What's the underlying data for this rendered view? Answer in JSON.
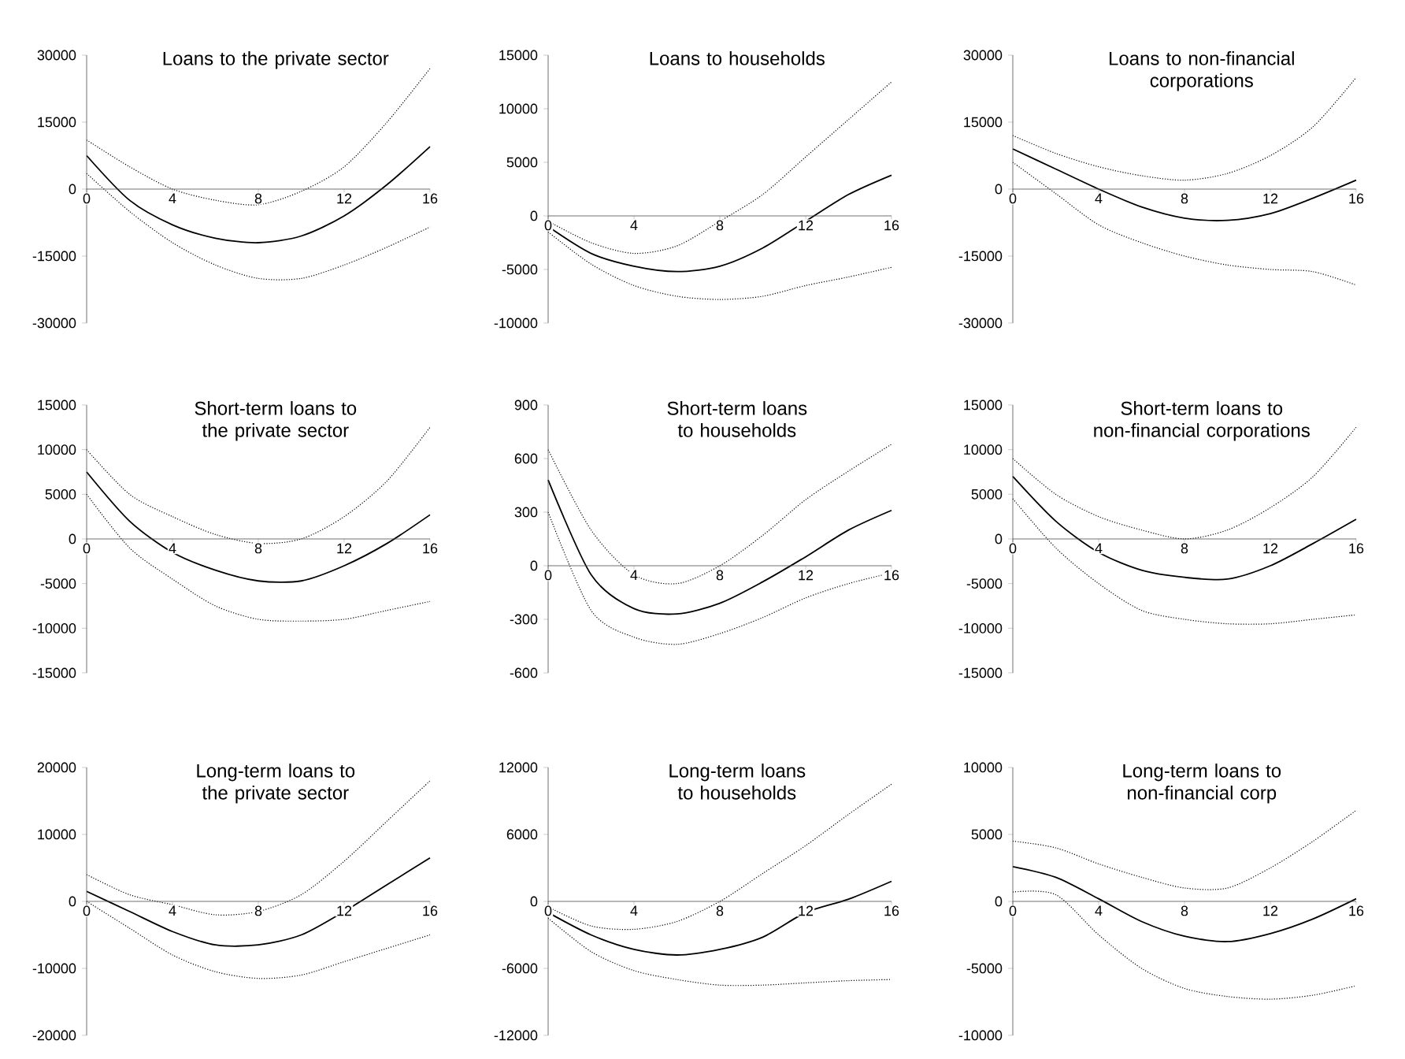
{
  "chart_data": [
    {
      "type": "line",
      "title": "Loans to the private sector",
      "x": [
        0,
        2,
        4,
        6,
        8,
        10,
        12,
        14,
        16
      ],
      "xlim": [
        0,
        16
      ],
      "xticks": [
        0,
        4,
        8,
        12,
        16
      ],
      "ylim": [
        -30000,
        30000
      ],
      "yticks": [
        -30000,
        -15000,
        0,
        15000,
        30000
      ],
      "series": [
        {
          "color": "#000000",
          "line_style": "solid",
          "values": [
            7500,
            -2500,
            -8000,
            -11000,
            -12000,
            -10500,
            -6000,
            1000,
            9500
          ]
        },
        {
          "color": "#000000",
          "line_style": "dotted",
          "values": [
            11000,
            5000,
            0,
            -2500,
            -3500,
            -500,
            5000,
            15000,
            27000
          ]
        },
        {
          "color": "#000000",
          "line_style": "dotted",
          "values": [
            3500,
            -5000,
            -12000,
            -17000,
            -20000,
            -20000,
            -17000,
            -13000,
            -8500
          ]
        }
      ]
    },
    {
      "type": "line",
      "title": "Loans to households",
      "x": [
        0,
        2,
        4,
        6,
        8,
        10,
        12,
        14,
        16
      ],
      "xlim": [
        0,
        16
      ],
      "xticks": [
        0,
        4,
        8,
        12,
        16
      ],
      "ylim": [
        -10000,
        15000
      ],
      "yticks": [
        -10000,
        -5000,
        0,
        5000,
        10000,
        15000
      ],
      "series": [
        {
          "color": "#000000",
          "line_style": "solid",
          "values": [
            -1000,
            -3500,
            -4700,
            -5200,
            -4700,
            -3000,
            -500,
            2000,
            3800
          ]
        },
        {
          "color": "#000000",
          "line_style": "dotted",
          "values": [
            -500,
            -2500,
            -3500,
            -2800,
            -500,
            2000,
            5500,
            9000,
            12500
          ]
        },
        {
          "color": "#000000",
          "line_style": "dotted",
          "values": [
            -1500,
            -4500,
            -6500,
            -7500,
            -7800,
            -7500,
            -6500,
            -5700,
            -4800
          ]
        }
      ]
    },
    {
      "type": "line",
      "title": "Loans to non-financial corporations",
      "x": [
        0,
        2,
        4,
        6,
        8,
        10,
        12,
        14,
        16
      ],
      "xlim": [
        0,
        16
      ],
      "xticks": [
        0,
        4,
        8,
        12,
        16
      ],
      "ylim": [
        -30000,
        30000
      ],
      "yticks": [
        -30000,
        -15000,
        0,
        15000,
        30000
      ],
      "series": [
        {
          "color": "#000000",
          "line_style": "solid",
          "values": [
            9000,
            4500,
            0,
            -4000,
            -6500,
            -7000,
            -5500,
            -2000,
            2000
          ]
        },
        {
          "color": "#000000",
          "line_style": "dotted",
          "values": [
            12000,
            8000,
            5000,
            3000,
            2000,
            3500,
            7500,
            14000,
            25000
          ]
        },
        {
          "color": "#000000",
          "line_style": "dotted",
          "values": [
            6000,
            -1000,
            -8000,
            -12000,
            -15000,
            -17000,
            -18000,
            -18500,
            -21500
          ]
        }
      ]
    },
    {
      "type": "line",
      "title": "Short-term loans to the private sector",
      "x": [
        0,
        2,
        4,
        6,
        8,
        10,
        12,
        14,
        16
      ],
      "xlim": [
        0,
        16
      ],
      "xticks": [
        0,
        4,
        8,
        12,
        16
      ],
      "ylim": [
        -15000,
        15000
      ],
      "yticks": [
        -15000,
        -10000,
        -5000,
        0,
        5000,
        10000,
        15000
      ],
      "series": [
        {
          "color": "#000000",
          "line_style": "solid",
          "values": [
            7500,
            2000,
            -1500,
            -3500,
            -4700,
            -4700,
            -3000,
            -500,
            2700
          ]
        },
        {
          "color": "#000000",
          "line_style": "dotted",
          "values": [
            10000,
            5000,
            2500,
            500,
            -500,
            0,
            2500,
            6500,
            12500
          ]
        },
        {
          "color": "#000000",
          "line_style": "dotted",
          "values": [
            5000,
            -1000,
            -4500,
            -7500,
            -9000,
            -9200,
            -9000,
            -8000,
            -7000
          ]
        }
      ]
    },
    {
      "type": "line",
      "title": "Short-term loans to households",
      "x": [
        0,
        2,
        4,
        6,
        8,
        10,
        12,
        14,
        16
      ],
      "xlim": [
        0,
        16
      ],
      "xticks": [
        0,
        4,
        8,
        12,
        16
      ],
      "ylim": [
        -600,
        900
      ],
      "yticks": [
        -600,
        -300,
        0,
        300,
        600,
        900
      ],
      "series": [
        {
          "color": "#000000",
          "line_style": "solid",
          "values": [
            480,
            -50,
            -240,
            -270,
            -210,
            -90,
            50,
            200,
            310
          ]
        },
        {
          "color": "#000000",
          "line_style": "dotted",
          "values": [
            650,
            200,
            -50,
            -100,
            0,
            170,
            370,
            530,
            680
          ]
        },
        {
          "color": "#000000",
          "line_style": "dotted",
          "values": [
            300,
            -250,
            -400,
            -440,
            -380,
            -290,
            -180,
            -100,
            -40
          ]
        }
      ]
    },
    {
      "type": "line",
      "title": "Short-term loans to non-financial corporations",
      "x": [
        0,
        2,
        4,
        6,
        8,
        10,
        12,
        14,
        16
      ],
      "xlim": [
        0,
        16
      ],
      "xticks": [
        0,
        4,
        8,
        12,
        16
      ],
      "ylim": [
        -15000,
        15000
      ],
      "yticks": [
        -15000,
        -10000,
        -5000,
        0,
        5000,
        10000,
        15000
      ],
      "series": [
        {
          "color": "#000000",
          "line_style": "solid",
          "values": [
            7000,
            2000,
            -1500,
            -3500,
            -4300,
            -4500,
            -3000,
            -500,
            2200
          ]
        },
        {
          "color": "#000000",
          "line_style": "dotted",
          "values": [
            9000,
            5000,
            2500,
            1000,
            0,
            1000,
            3500,
            7000,
            12500
          ]
        },
        {
          "color": "#000000",
          "line_style": "dotted",
          "values": [
            4500,
            -1000,
            -5000,
            -8000,
            -9000,
            -9500,
            -9500,
            -9000,
            -8500
          ]
        }
      ]
    },
    {
      "type": "line",
      "title": "Long-term loans to the private sector",
      "x": [
        0,
        2,
        4,
        6,
        8,
        10,
        12,
        14,
        16
      ],
      "xlim": [
        0,
        16
      ],
      "xticks": [
        0,
        4,
        8,
        12,
        16
      ],
      "ylim": [
        -20000,
        20000
      ],
      "yticks": [
        -20000,
        -10000,
        0,
        10000,
        20000
      ],
      "series": [
        {
          "color": "#000000",
          "line_style": "solid",
          "values": [
            1500,
            -1500,
            -4500,
            -6500,
            -6500,
            -5000,
            -1500,
            2500,
            6500
          ]
        },
        {
          "color": "#000000",
          "line_style": "dotted",
          "values": [
            4000,
            1000,
            -500,
            -2000,
            -1500,
            1000,
            6000,
            12000,
            18000
          ]
        },
        {
          "color": "#000000",
          "line_style": "dotted",
          "values": [
            0,
            -4000,
            -8000,
            -10500,
            -11500,
            -11000,
            -9000,
            -7000,
            -5000
          ]
        }
      ]
    },
    {
      "type": "line",
      "title": "Long-term loans to households",
      "x": [
        0,
        2,
        4,
        6,
        8,
        10,
        12,
        14,
        16
      ],
      "xlim": [
        0,
        16
      ],
      "xticks": [
        0,
        4,
        8,
        12,
        16
      ],
      "ylim": [
        -12000,
        12000
      ],
      "yticks": [
        -12000,
        -6000,
        0,
        6000,
        12000
      ],
      "series": [
        {
          "color": "#000000",
          "line_style": "solid",
          "values": [
            -1000,
            -3000,
            -4300,
            -4800,
            -4300,
            -3200,
            -1000,
            200,
            1800
          ]
        },
        {
          "color": "#000000",
          "line_style": "dotted",
          "values": [
            -500,
            -2200,
            -2500,
            -1800,
            0,
            2500,
            5000,
            7800,
            10500
          ]
        },
        {
          "color": "#000000",
          "line_style": "dotted",
          "values": [
            -1500,
            -4500,
            -6200,
            -7000,
            -7500,
            -7500,
            -7300,
            -7100,
            -7000
          ]
        }
      ]
    },
    {
      "type": "line",
      "title": "Long-term loans to non-financial corp",
      "x": [
        0,
        2,
        4,
        6,
        8,
        10,
        12,
        14,
        16
      ],
      "xlim": [
        0,
        16
      ],
      "xticks": [
        0,
        4,
        8,
        12,
        16
      ],
      "ylim": [
        -10000,
        10000
      ],
      "yticks": [
        -10000,
        -5000,
        0,
        5000,
        10000
      ],
      "series": [
        {
          "color": "#000000",
          "line_style": "solid",
          "values": [
            2600,
            1800,
            200,
            -1500,
            -2600,
            -3000,
            -2400,
            -1300,
            200
          ]
        },
        {
          "color": "#000000",
          "line_style": "dotted",
          "values": [
            4500,
            4000,
            2800,
            1800,
            1000,
            1000,
            2500,
            4500,
            6800
          ]
        },
        {
          "color": "#000000",
          "line_style": "dotted",
          "values": [
            700,
            500,
            -2500,
            -5000,
            -6500,
            -7100,
            -7300,
            -7000,
            -6300
          ]
        }
      ]
    }
  ]
}
